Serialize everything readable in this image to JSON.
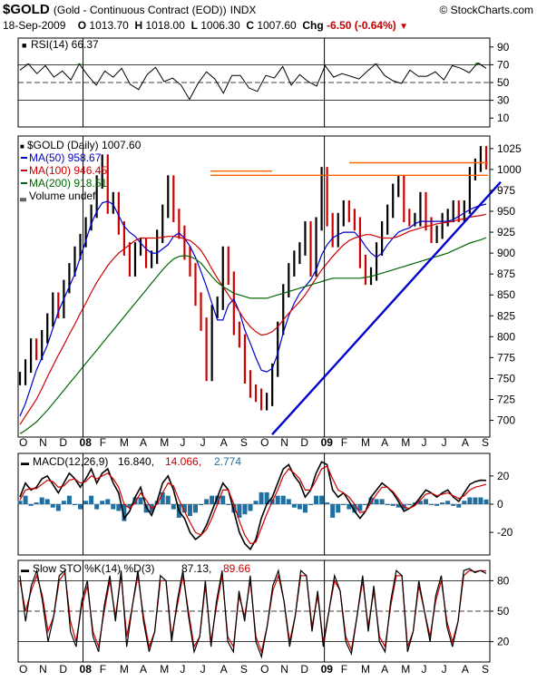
{
  "header": {
    "symbol": "$GOLD",
    "name": "(Gold - Continuous Contract (EOD))",
    "exchange": "INDX",
    "watermark": "© StockCharts.com",
    "date": "18-Sep-2009",
    "open_label": "O",
    "open": "1013.70",
    "high_label": "H",
    "high": "1018.00",
    "low_label": "L",
    "low": "1006.30",
    "close_label": "C",
    "close": "1007.60",
    "chg_label": "Chg",
    "chg": "-6.50 (-0.64%)"
  },
  "x_axis": {
    "labels": [
      "O",
      "N",
      "D",
      "08",
      "F",
      "M",
      "A",
      "M",
      "J",
      "J",
      "A",
      "S",
      "O",
      "N",
      "D",
      "09",
      "F",
      "M",
      "A",
      "M",
      "J",
      "J",
      "A",
      "S"
    ]
  },
  "chart_data": [
    {
      "type": "line",
      "panel": "rsi",
      "title": "RSI(14) 66.37",
      "y_ticks": [
        10,
        30,
        50,
        70,
        90
      ],
      "ylim": [
        0,
        100
      ],
      "series": [
        {
          "name": "RSI(14)",
          "values": [
            64,
            71,
            60,
            69,
            56,
            63,
            53,
            71,
            58,
            47,
            63,
            56,
            66,
            48,
            42,
            59,
            67,
            51,
            55,
            47,
            31,
            49,
            62,
            54,
            38,
            58,
            58,
            44,
            40,
            58,
            55,
            68,
            47,
            59,
            51,
            46,
            69,
            56,
            60,
            57,
            54,
            63,
            71,
            58,
            52,
            49,
            64,
            57,
            57,
            62,
            53,
            69,
            66,
            61,
            72,
            66
          ]
        }
      ]
    },
    {
      "type": "line",
      "panel": "price",
      "title": "$GOLD (Daily) 1007.60",
      "ylim": [
        680,
        1040
      ],
      "y_ticks": [
        700,
        725,
        750,
        775,
        800,
        825,
        850,
        875,
        900,
        925,
        950,
        975,
        1000,
        1025
      ],
      "series": [
        {
          "name": "$GOLD (Daily) 1007.60",
          "color": "#000000",
          "values": [
            750,
            765,
            790,
            780,
            800,
            820,
            845,
            830,
            860,
            880,
            900,
            915,
            935,
            950,
            985,
            1010,
            955,
            965,
            930,
            905,
            880,
            905,
            910,
            890,
            895,
            920,
            950,
            985,
            945,
            925,
            900,
            880,
            845,
            815,
            755,
            830,
            840,
            900,
            870,
            810,
            795,
            752,
            735,
            730,
            720,
            725,
            760,
            810,
            855,
            880,
            895,
            905,
            930,
            880,
            935,
            995,
            940,
            915,
            940,
            955,
            945,
            935,
            890,
            870,
            875,
            905,
            930,
            950,
            975,
            985,
            945,
            940,
            940,
            965,
            935,
            920,
            925,
            940,
            945,
            955,
            945,
            955,
            995,
            1005,
            1020,
            1008
          ]
        },
        {
          "name": "MA(50) 958.67",
          "color": "#0000cc",
          "values": [
            705,
            720,
            740,
            760,
            775,
            790,
            810,
            830,
            845,
            860,
            875,
            895,
            915,
            935,
            950,
            960,
            962,
            958,
            945,
            932,
            925,
            920,
            912,
            905,
            900,
            900,
            905,
            910,
            920,
            924,
            918,
            908,
            895,
            878,
            860,
            840,
            820,
            820,
            838,
            845,
            830,
            808,
            792,
            775,
            760,
            758,
            762,
            780,
            805,
            825,
            840,
            852,
            860,
            868,
            880,
            898,
            910,
            918,
            922,
            925,
            925,
            925,
            918,
            908,
            900,
            895,
            900,
            910,
            918,
            925,
            928,
            930,
            935,
            938,
            938,
            938,
            938,
            938,
            938,
            940,
            944,
            948,
            952,
            955,
            957,
            958.67
          ]
        },
        {
          "name": "MA(100) 946.45",
          "color": "#cc0000",
          "values": [
            695,
            705,
            715,
            725,
            738,
            752,
            765,
            778,
            790,
            803,
            815,
            828,
            840,
            853,
            865,
            875,
            885,
            893,
            900,
            905,
            910,
            915,
            918,
            918,
            918,
            918,
            919,
            920,
            920,
            919,
            917,
            915,
            910,
            903,
            893,
            881,
            870,
            860,
            850,
            840,
            830,
            820,
            812,
            806,
            802,
            803,
            806,
            812,
            820,
            828,
            835,
            842,
            850,
            860,
            870,
            880,
            888,
            896,
            903,
            910,
            915,
            918,
            920,
            922,
            922,
            920,
            918,
            918,
            918,
            920,
            923,
            926,
            928,
            930,
            932,
            933,
            935,
            936,
            937,
            938,
            940,
            941,
            943,
            944,
            945,
            946.45
          ]
        },
        {
          "name": "MA(200) 918.51",
          "color": "#006600",
          "values": [
            684,
            688,
            693,
            698,
            705,
            712,
            720,
            728,
            736,
            744,
            752,
            760,
            768,
            776,
            784,
            792,
            800,
            808,
            816,
            824,
            832,
            840,
            848,
            856,
            864,
            872,
            880,
            887,
            893,
            896,
            897,
            896,
            893,
            888,
            880,
            872,
            865,
            860,
            856,
            852,
            850,
            848,
            846,
            846,
            846,
            846,
            848,
            850,
            852,
            854,
            856,
            858,
            860,
            862,
            864,
            866,
            868,
            870,
            870,
            870,
            870,
            870,
            870,
            871,
            872,
            874,
            876,
            878,
            880,
            882,
            884,
            886,
            888,
            890,
            892,
            894,
            896,
            898,
            900,
            903,
            906,
            909,
            912,
            914,
            916,
            918.51
          ]
        }
      ],
      "legend": [
        "$GOLD (Daily) 1007.60",
        "MA(50) 958.67",
        "MA(100) 946.45",
        "MA(200) 918.51",
        "Volume undef"
      ]
    },
    {
      "type": "line",
      "panel": "macd",
      "title": "MACD(12,26,9) 16.840, 14.066, 2.774",
      "title_parts": {
        "name": "MACD(12,26,9)",
        "macd": "16.840,",
        "signal": "14.066,",
        "hist": "2.774"
      },
      "y_ticks": [
        -20,
        0,
        20
      ],
      "ylim": [
        -36,
        36
      ],
      "series": [
        {
          "name": "MACD",
          "color": "#000000",
          "values": [
            5,
            15,
            10,
            12,
            18,
            20,
            14,
            8,
            15,
            22,
            18,
            12,
            18,
            25,
            15,
            22,
            25,
            15,
            8,
            -10,
            -5,
            5,
            12,
            -2,
            -8,
            2,
            15,
            20,
            10,
            -5,
            -10,
            -20,
            -25,
            -22,
            -15,
            -5,
            5,
            15,
            10,
            -5,
            -20,
            -28,
            -32,
            -25,
            -10,
            0,
            5,
            15,
            25,
            28,
            20,
            15,
            5,
            10,
            22,
            30,
            28,
            10,
            5,
            8,
            2,
            -5,
            -10,
            -5,
            5,
            10,
            15,
            12,
            8,
            2,
            -5,
            -3,
            0,
            5,
            10,
            8,
            5,
            8,
            10,
            5,
            2,
            8,
            14,
            16,
            17,
            16.84
          ]
        },
        {
          "name": "Signal",
          "color": "#cc0000",
          "values": [
            3,
            10,
            11,
            11,
            14,
            17,
            16,
            12,
            13,
            17,
            18,
            15,
            16,
            20,
            18,
            20,
            22,
            18,
            12,
            0,
            -3,
            1,
            8,
            3,
            -3,
            0,
            8,
            15,
            13,
            3,
            -5,
            -13,
            -20,
            -22,
            -18,
            -10,
            0,
            10,
            10,
            0,
            -12,
            -22,
            -28,
            -27,
            -17,
            -7,
            2,
            10,
            20,
            25,
            22,
            18,
            10,
            10,
            17,
            25,
            27,
            18,
            10,
            8,
            5,
            0,
            -6,
            -5,
            1,
            7,
            12,
            12,
            9,
            4,
            -2,
            -3,
            -1,
            3,
            7,
            8,
            6,
            7,
            8,
            6,
            4,
            6,
            10,
            12,
            13,
            14.066
          ]
        }
      ]
    },
    {
      "type": "line",
      "panel": "sto",
      "title": "Slow STO %K(14) %D(3) 87.13, 89.66",
      "title_parts": {
        "name": "Slow STO %K(14) %D(3)",
        "k": "87.13,",
        "d": "89.66"
      },
      "y_ticks": [
        20,
        50,
        80
      ],
      "ylim": [
        0,
        100
      ],
      "series": [
        {
          "name": "%K(14)",
          "color": "#000000",
          "values": [
            85,
            40,
            75,
            90,
            60,
            20,
            45,
            85,
            90,
            30,
            15,
            60,
            80,
            25,
            10,
            55,
            85,
            40,
            90,
            15,
            55,
            90,
            40,
            10,
            30,
            85,
            80,
            20,
            60,
            90,
            45,
            10,
            25,
            80,
            15,
            60,
            90,
            20,
            10,
            70,
            40,
            85,
            20,
            5,
            35,
            75,
            90,
            60,
            15,
            45,
            90,
            85,
            30,
            70,
            15,
            50,
            85,
            70,
            20,
            8,
            45,
            85,
            30,
            75,
            20,
            10,
            60,
            90,
            85,
            10,
            30,
            80,
            50,
            20,
            65,
            85,
            35,
            15,
            40,
            90,
            92,
            88,
            90,
            87.13
          ]
        },
        {
          "name": "%D(3)",
          "color": "#cc0000",
          "values": [
            80,
            50,
            70,
            85,
            65,
            30,
            45,
            80,
            88,
            40,
            20,
            55,
            75,
            30,
            15,
            50,
            80,
            45,
            85,
            25,
            55,
            85,
            45,
            15,
            30,
            80,
            80,
            25,
            55,
            85,
            50,
            15,
            25,
            75,
            20,
            55,
            85,
            25,
            15,
            65,
            45,
            80,
            25,
            10,
            35,
            70,
            85,
            60,
            20,
            45,
            85,
            85,
            35,
            65,
            20,
            50,
            80,
            70,
            25,
            12,
            45,
            80,
            35,
            70,
            25,
            15,
            55,
            85,
            85,
            15,
            30,
            75,
            50,
            25,
            60,
            80,
            40,
            20,
            40,
            85,
            90,
            89,
            90,
            89.66
          ]
        }
      ]
    }
  ]
}
